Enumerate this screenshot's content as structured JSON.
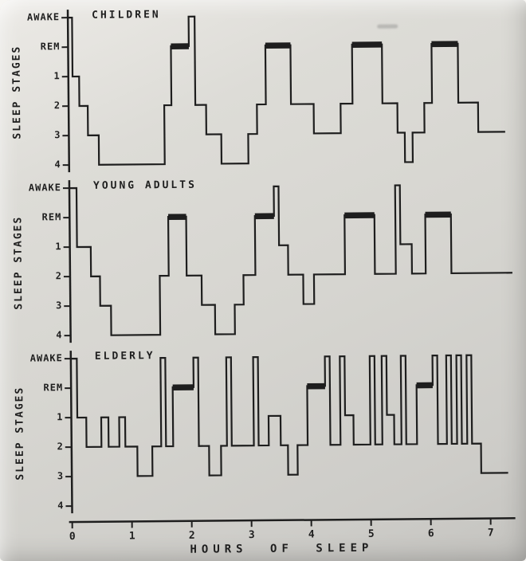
{
  "figure": {
    "y_axis_title": "SLEEP STAGES",
    "x_axis_title": "HOURS OF SLEEP",
    "x_tick_labels": [
      "0",
      "1",
      "2",
      "3",
      "4",
      "5",
      "6",
      "7"
    ],
    "ink_color": "#1e1e1e",
    "paper_color": "#d8d7d2"
  },
  "chart_data": [
    {
      "type": "line",
      "subtype": "hypnogram-step",
      "title": "CHILDREN",
      "stage_labels": [
        "AWAKE",
        "REM",
        "1",
        "2",
        "3",
        "4"
      ],
      "x_range_hours": [
        0,
        7.5
      ],
      "end_hour": 7.3,
      "steps": [
        [
          0,
          "AWAKE"
        ],
        [
          0.07,
          "1"
        ],
        [
          0.18,
          "2"
        ],
        [
          0.32,
          "3"
        ],
        [
          0.5,
          "4"
        ],
        [
          1.6,
          "2"
        ],
        [
          1.72,
          "REM"
        ],
        [
          2.02,
          "AWAKE"
        ],
        [
          2.12,
          "2"
        ],
        [
          2.3,
          "3"
        ],
        [
          2.55,
          "4"
        ],
        [
          3.0,
          "3"
        ],
        [
          3.15,
          "2"
        ],
        [
          3.3,
          "REM"
        ],
        [
          3.72,
          "2"
        ],
        [
          4.1,
          "3"
        ],
        [
          4.55,
          "2"
        ],
        [
          4.75,
          "REM"
        ],
        [
          5.25,
          "2"
        ],
        [
          5.5,
          "3"
        ],
        [
          5.62,
          "4"
        ],
        [
          5.75,
          "3"
        ],
        [
          5.95,
          "2"
        ],
        [
          6.08,
          "REM"
        ],
        [
          6.52,
          "2"
        ],
        [
          6.85,
          "3"
        ]
      ],
      "rem_bars": [
        [
          1.72,
          2.02
        ],
        [
          3.3,
          3.72
        ],
        [
          4.75,
          5.25
        ],
        [
          6.08,
          6.52
        ]
      ]
    },
    {
      "type": "line",
      "subtype": "hypnogram-step",
      "title": "YOUNG ADULTS",
      "stage_labels": [
        "AWAKE",
        "REM",
        "1",
        "2",
        "3",
        "4"
      ],
      "x_range_hours": [
        0,
        7.5
      ],
      "end_hour": 7.4,
      "steps": [
        [
          0,
          "AWAKE"
        ],
        [
          0.12,
          "1"
        ],
        [
          0.35,
          "2"
        ],
        [
          0.5,
          "3"
        ],
        [
          0.68,
          "4"
        ],
        [
          1.5,
          "2"
        ],
        [
          1.65,
          "REM"
        ],
        [
          1.95,
          "2"
        ],
        [
          2.2,
          "3"
        ],
        [
          2.42,
          "4"
        ],
        [
          2.75,
          "3"
        ],
        [
          2.9,
          "2"
        ],
        [
          3.1,
          "REM"
        ],
        [
          3.42,
          "AWAKE"
        ],
        [
          3.5,
          "1"
        ],
        [
          3.65,
          "2"
        ],
        [
          3.9,
          "3"
        ],
        [
          4.08,
          "2"
        ],
        [
          4.6,
          "REM"
        ],
        [
          5.1,
          "2"
        ],
        [
          5.45,
          "AWAKE"
        ],
        [
          5.53,
          "1"
        ],
        [
          5.72,
          "2"
        ],
        [
          5.95,
          "REM"
        ],
        [
          6.38,
          "2"
        ]
      ],
      "rem_bars": [
        [
          1.65,
          1.95
        ],
        [
          3.1,
          3.42
        ],
        [
          4.6,
          5.1
        ],
        [
          5.95,
          6.38
        ]
      ]
    },
    {
      "type": "line",
      "subtype": "hypnogram-step",
      "title": "ELDERLY",
      "stage_labels": [
        "AWAKE",
        "REM",
        "1",
        "2",
        "3",
        "4"
      ],
      "x_range_hours": [
        0,
        7.5
      ],
      "end_hour": 7.3,
      "steps": [
        [
          0,
          "AWAKE"
        ],
        [
          0.1,
          "1"
        ],
        [
          0.25,
          "2"
        ],
        [
          0.5,
          "1"
        ],
        [
          0.62,
          "2"
        ],
        [
          0.8,
          "1"
        ],
        [
          0.9,
          "2"
        ],
        [
          1.1,
          "3"
        ],
        [
          1.35,
          "2"
        ],
        [
          1.5,
          "AWAKE"
        ],
        [
          1.58,
          "2"
        ],
        [
          1.7,
          "REM"
        ],
        [
          2.05,
          "AWAKE"
        ],
        [
          2.13,
          "2"
        ],
        [
          2.3,
          "3"
        ],
        [
          2.5,
          "2"
        ],
        [
          2.6,
          "AWAKE"
        ],
        [
          2.68,
          "2"
        ],
        [
          3.05,
          "AWAKE"
        ],
        [
          3.13,
          "2"
        ],
        [
          3.3,
          "1"
        ],
        [
          3.5,
          "2"
        ],
        [
          3.62,
          "3"
        ],
        [
          3.78,
          "2"
        ],
        [
          3.95,
          "REM"
        ],
        [
          4.25,
          "AWAKE"
        ],
        [
          4.33,
          "2"
        ],
        [
          4.5,
          "AWAKE"
        ],
        [
          4.58,
          "1"
        ],
        [
          4.72,
          "2"
        ],
        [
          5,
          "AWAKE"
        ],
        [
          5.08,
          "2"
        ],
        [
          5.2,
          "AWAKE"
        ],
        [
          5.28,
          "1"
        ],
        [
          5.4,
          "2"
        ],
        [
          5.52,
          "AWAKE"
        ],
        [
          5.6,
          "2"
        ],
        [
          5.78,
          "REM"
        ],
        [
          6.05,
          "AWAKE"
        ],
        [
          6.13,
          "2"
        ],
        [
          6.28,
          "AWAKE"
        ],
        [
          6.36,
          "2"
        ],
        [
          6.45,
          "AWAKE"
        ],
        [
          6.53,
          "2"
        ],
        [
          6.62,
          "AWAKE"
        ],
        [
          6.7,
          "2"
        ],
        [
          6.85,
          "3"
        ]
      ],
      "rem_bars": [
        [
          1.7,
          2.05
        ],
        [
          3.95,
          4.25
        ],
        [
          5.78,
          6.05
        ]
      ]
    }
  ]
}
